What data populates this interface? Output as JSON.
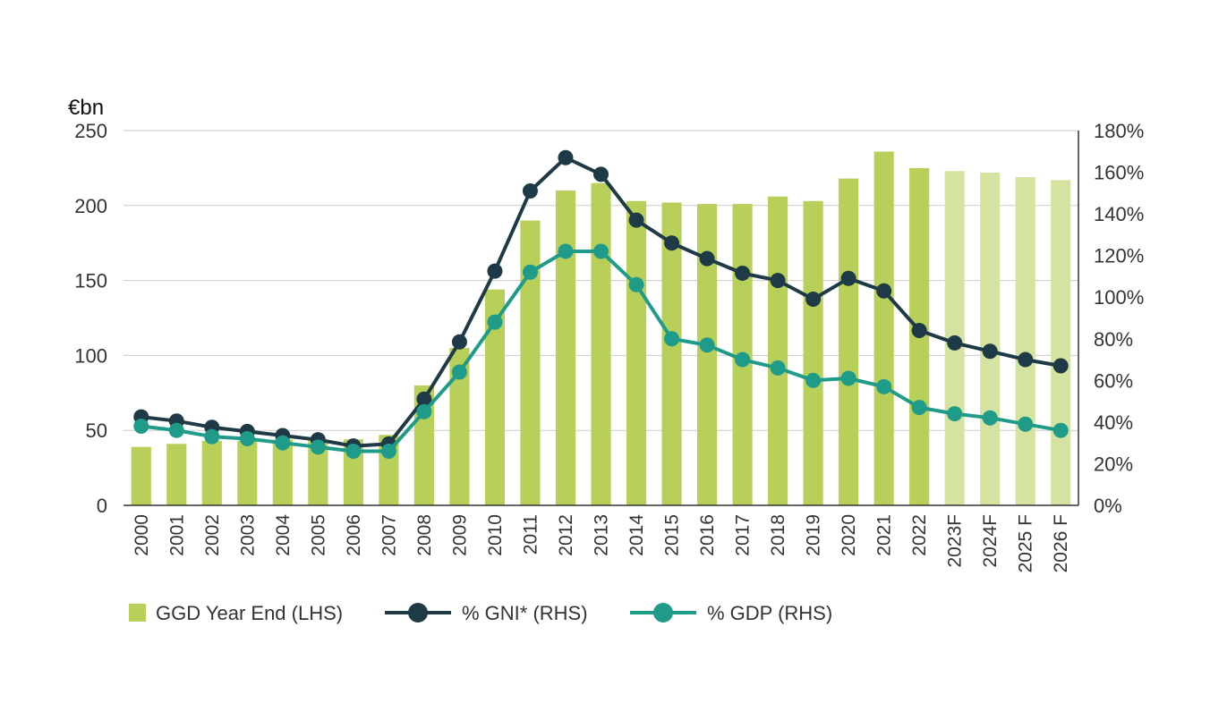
{
  "chart_data": {
    "type": "bar+line",
    "title": "",
    "left_axis": {
      "unit_label": "€bn",
      "ylim": [
        0,
        250
      ],
      "ticks": [
        "0",
        "50",
        "100",
        "150",
        "200",
        "250"
      ]
    },
    "right_axis": {
      "ylim": [
        0,
        180
      ],
      "ticks": [
        "0%",
        "20%",
        "40%",
        "60%",
        "80%",
        "100%",
        "120%",
        "140%",
        "160%",
        "180%"
      ]
    },
    "categories": [
      "2000",
      "2001",
      "2002",
      "2003",
      "2004",
      "2005",
      "2006",
      "2007",
      "2008",
      "2009",
      "2010",
      "2011",
      "2012",
      "2013",
      "2014",
      "2015",
      "2016",
      "2017",
      "2018",
      "2019",
      "2020",
      "2021",
      "2022",
      "2023F",
      "2024F",
      "2025 F",
      "2026 F"
    ],
    "forecast_from_index": 23,
    "series": [
      {
        "name": "GGD Year End (LHS)",
        "kind": "bar",
        "axis": "left",
        "color": "#b8cf5a",
        "forecast_color": "#d5e3a0",
        "values": [
          39,
          41,
          43,
          43,
          44,
          44,
          44,
          47,
          80,
          105,
          144,
          190,
          210,
          215,
          203,
          202,
          201,
          201,
          206,
          203,
          218,
          236,
          225,
          223,
          222,
          219,
          217
        ]
      },
      {
        "name": "% GNI* (RHS)",
        "kind": "line",
        "axis": "right",
        "color": "#1d3a46",
        "values": [
          42.5,
          40.5,
          37.5,
          35.5,
          33.5,
          31.5,
          28.5,
          29.5,
          51,
          78.5,
          112.5,
          151,
          167,
          159,
          137,
          126,
          118.5,
          111.5,
          108,
          99,
          109,
          103,
          84,
          78,
          74,
          70,
          67
        ]
      },
      {
        "name": "% GDP (RHS)",
        "kind": "line",
        "axis": "right",
        "color": "#1f9b8a",
        "values": [
          38,
          36,
          33,
          32,
          30,
          28,
          26,
          26,
          45,
          64,
          88,
          112,
          122,
          122,
          106,
          80,
          77,
          70,
          66,
          60,
          61,
          57,
          47,
          44,
          42,
          39,
          36
        ]
      }
    ],
    "legend_position": "bottom-left",
    "grid": "horizontal"
  }
}
